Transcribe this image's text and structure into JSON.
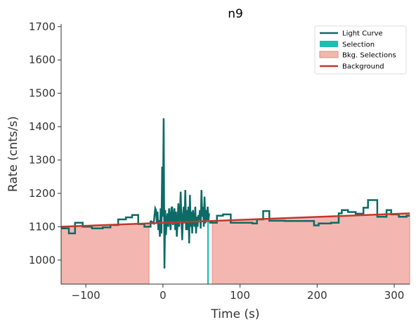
{
  "chart_data": {
    "type": "line",
    "title": "n9",
    "xlabel": "Time (s)",
    "ylabel": "Rate (cnts/s)",
    "xlim": [
      -132,
      320
    ],
    "ylim": [
      928,
      1708
    ],
    "xticks": [
      -100,
      0,
      100,
      200,
      300
    ],
    "xtick_labels": [
      "−100",
      "0",
      "100",
      "200",
      "300"
    ],
    "yticks": [
      1000,
      1100,
      1200,
      1300,
      1400,
      1500,
      1600,
      1700
    ],
    "ytick_labels": [
      "1000",
      "1100",
      "1200",
      "1300",
      "1400",
      "1500",
      "1600",
      "1700"
    ],
    "grid": false,
    "legend_position": "top-right",
    "legend": [
      "Light Curve",
      "Selection",
      "Bkg. Selections",
      "Background"
    ],
    "colors": {
      "light_curve": "#0c6b66",
      "selection": "#1abfb3",
      "bkg_selection_fill": "#f4b6b0",
      "bkg_selection_edge": "#e98b80",
      "background": "#c0392b"
    },
    "background_line": {
      "x": [
        -132,
        320
      ],
      "y": [
        1100,
        1140
      ]
    },
    "selection_interval": [
      57.5,
      59.5
    ],
    "bkg_selections": [
      [
        -132,
        -18
      ],
      [
        64,
        320
      ]
    ],
    "light_curve_coarse_left": {
      "x": [
        -132,
        -122,
        -114,
        -104,
        -92,
        -78,
        -68,
        -58,
        -48,
        -40,
        -32,
        -24,
        -16
      ],
      "y": [
        1095,
        1080,
        1112,
        1100,
        1095,
        1098,
        1105,
        1122,
        1128,
        1135,
        1108,
        1100,
        1118
      ]
    },
    "light_curve_fine": {
      "x": [
        -16,
        -12,
        -10,
        -9,
        -8,
        -7,
        -6,
        -5,
        -4,
        -3,
        -2,
        -1,
        0,
        1,
        2,
        3,
        4,
        5,
        6,
        7,
        8,
        9,
        10,
        11,
        12,
        13,
        14,
        15,
        16,
        17,
        18,
        19,
        20,
        21,
        22,
        23,
        24,
        25,
        26,
        27,
        28,
        29,
        30,
        31,
        32,
        33,
        34,
        35,
        36,
        37,
        38,
        39,
        40,
        41,
        42,
        43,
        44,
        45,
        46,
        47,
        48,
        49,
        50,
        51,
        52,
        53,
        54,
        55,
        56,
        57,
        58,
        59,
        60
      ],
      "y": [
        1118,
        1110,
        1155,
        1150,
        1112,
        1145,
        1090,
        1120,
        1070,
        1155,
        1080,
        1280,
        1130,
        1425,
        975,
        1150,
        1075,
        1120,
        1140,
        1100,
        1155,
        1130,
        1090,
        1155,
        1160,
        1105,
        1130,
        1155,
        1090,
        1145,
        1070,
        1110,
        1170,
        1100,
        1130,
        1205,
        1120,
        1060,
        1135,
        1160,
        1110,
        1210,
        1090,
        1150,
        1090,
        1160,
        1050,
        1195,
        1100,
        1145,
        1080,
        1150,
        1120,
        1100,
        1160,
        1080,
        1130,
        1100,
        1135,
        1120,
        1150,
        1095,
        1210,
        1130,
        1160,
        1100,
        1190,
        1110,
        1150,
        1120,
        1160,
        1120,
        1140
      ]
    },
    "light_curve_coarse_right": {
      "x": [
        60,
        70,
        78,
        88,
        98,
        116,
        122,
        130,
        138,
        150,
        158,
        180,
        188,
        196,
        202,
        218,
        228,
        232,
        240,
        250,
        260,
        266,
        278,
        290,
        296,
        306,
        316,
        320
      ],
      "y": [
        1112,
        1133,
        1137,
        1112,
        1112,
        1110,
        1122,
        1147,
        1118,
        1118,
        1117,
        1117,
        1117,
        1104,
        1110,
        1112,
        1140,
        1150,
        1144,
        1139,
        1157,
        1180,
        1130,
        1150,
        1137,
        1130,
        1133,
        1133
      ]
    }
  }
}
